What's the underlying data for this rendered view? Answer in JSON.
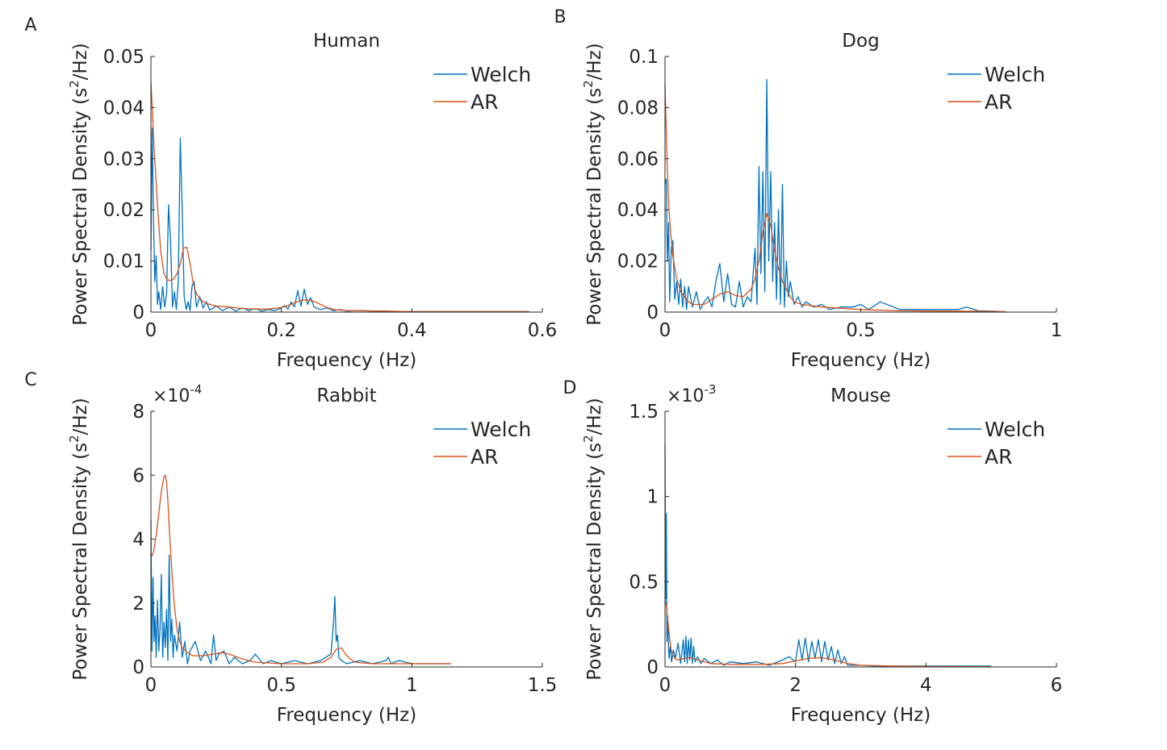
{
  "chart_data": [
    {
      "type": "line",
      "panel_label": "A",
      "title": "Human",
      "xlabel": "Frequency (Hz)",
      "ylabel": "Power Spectral Density (s²/Hz)",
      "ylabel_main": "Power Spectral Density (s",
      "ylabel_sup": "2",
      "ylabel_tail": "/Hz)",
      "xlim": [
        0,
        0.6
      ],
      "ylim": [
        0,
        0.05
      ],
      "xticks": [
        0,
        0.2,
        0.4,
        0.6
      ],
      "xtick_labels": [
        "0",
        "0.2",
        "0.4",
        "0.6"
      ],
      "yticks": [
        0,
        0.01,
        0.02,
        0.03,
        0.04,
        0.05
      ],
      "ytick_labels": [
        "0",
        "0.01",
        "0.02",
        "0.03",
        "0.04",
        "0.05"
      ],
      "exponent_base": "",
      "exponent_power": "",
      "legend_position": "top-right",
      "grid": false,
      "series": [
        {
          "name": "Welch",
          "color": "#0072BD",
          "x": [
            0,
            0.002,
            0.004,
            0.006,
            0.008,
            0.01,
            0.012,
            0.015,
            0.018,
            0.021,
            0.024,
            0.027,
            0.03,
            0.033,
            0.036,
            0.039,
            0.042,
            0.045,
            0.048,
            0.051,
            0.054,
            0.057,
            0.06,
            0.063,
            0.066,
            0.07,
            0.075,
            0.08,
            0.085,
            0.09,
            0.1,
            0.11,
            0.12,
            0.13,
            0.14,
            0.15,
            0.16,
            0.17,
            0.18,
            0.19,
            0.2,
            0.205,
            0.21,
            0.215,
            0.22,
            0.225,
            0.23,
            0.235,
            0.24,
            0.245,
            0.25,
            0.26,
            0.27,
            0.28,
            0.29,
            0.3,
            0.32,
            0.34,
            0.36,
            0.38,
            0.4,
            0.45,
            0.5,
            0.55,
            0.58
          ],
          "y": [
            0.012,
            0.036,
            0.018,
            0.006,
            0.011,
            0.0015,
            0.004,
            0.0005,
            0.005,
            0.001,
            0.0035,
            0.021,
            0.014,
            0.001,
            0.004,
            0.0005,
            0.006,
            0.034,
            0.02,
            0.003,
            0.0005,
            0.002,
            0.0003,
            0.005,
            0.006,
            0.001,
            0.003,
            0.0008,
            0.002,
            0.0004,
            0.0012,
            0.0003,
            0.001,
            0.0002,
            0.0008,
            0.0003,
            0.0007,
            0.0002,
            0.0005,
            0.0003,
            0.0008,
            0.0013,
            0.0006,
            0.002,
            0.001,
            0.0042,
            0.0012,
            0.0045,
            0.0015,
            0.0028,
            0.001,
            0.0005,
            0.0008,
            0.0003,
            0.0005,
            0.0002,
            0.0003,
            0.0002,
            0.0002,
            0.0001,
            0.0001,
            0.0001,
            0.0001,
            0.0001,
            0.0001
          ]
        },
        {
          "name": "AR",
          "color": "#D95319",
          "x": [
            0,
            0.002,
            0.005,
            0.01,
            0.015,
            0.02,
            0.025,
            0.03,
            0.035,
            0.04,
            0.045,
            0.05,
            0.055,
            0.06,
            0.065,
            0.07,
            0.08,
            0.09,
            0.1,
            0.12,
            0.14,
            0.16,
            0.18,
            0.2,
            0.21,
            0.22,
            0.23,
            0.24,
            0.25,
            0.26,
            0.27,
            0.28,
            0.3,
            0.35,
            0.4,
            0.5,
            0.58
          ],
          "y": [
            0.045,
            0.04,
            0.032,
            0.021,
            0.012,
            0.0075,
            0.0063,
            0.0062,
            0.0065,
            0.0075,
            0.0095,
            0.0125,
            0.0127,
            0.0095,
            0.0055,
            0.0035,
            0.002,
            0.0015,
            0.0012,
            0.001,
            0.0007,
            0.0006,
            0.0006,
            0.0009,
            0.0013,
            0.0018,
            0.0023,
            0.0024,
            0.0021,
            0.0015,
            0.0009,
            0.0005,
            0.0003,
            0.0002,
            0.0001,
            0.0001,
            0.0001
          ]
        }
      ]
    },
    {
      "type": "line",
      "panel_label": "B",
      "title": "Dog",
      "xlabel": "Frequency (Hz)",
      "ylabel": "Power Spectral Density (s²/Hz)",
      "ylabel_main": "Power Spectral Density (s",
      "ylabel_sup": "2",
      "ylabel_tail": "/Hz)",
      "xlim": [
        0,
        1
      ],
      "ylim": [
        0,
        0.1
      ],
      "xticks": [
        0,
        0.5,
        1
      ],
      "xtick_labels": [
        "0",
        "0.5",
        "1"
      ],
      "yticks": [
        0,
        0.02,
        0.04,
        0.06,
        0.08,
        0.1
      ],
      "ytick_labels": [
        "0",
        "0.02",
        "0.04",
        "0.06",
        "0.08",
        "0.1"
      ],
      "exponent_base": "",
      "exponent_power": "",
      "legend_position": "top-right",
      "grid": false,
      "series": [
        {
          "name": "Welch",
          "color": "#0072BD",
          "x": [
            0,
            0.003,
            0.006,
            0.009,
            0.012,
            0.016,
            0.02,
            0.025,
            0.03,
            0.035,
            0.04,
            0.045,
            0.05,
            0.055,
            0.06,
            0.07,
            0.08,
            0.09,
            0.1,
            0.11,
            0.12,
            0.13,
            0.14,
            0.15,
            0.16,
            0.17,
            0.18,
            0.19,
            0.2,
            0.21,
            0.22,
            0.23,
            0.235,
            0.24,
            0.245,
            0.25,
            0.255,
            0.26,
            0.265,
            0.27,
            0.275,
            0.28,
            0.285,
            0.29,
            0.295,
            0.3,
            0.305,
            0.31,
            0.315,
            0.32,
            0.33,
            0.34,
            0.35,
            0.36,
            0.38,
            0.4,
            0.42,
            0.45,
            0.48,
            0.5,
            0.52,
            0.55,
            0.6,
            0.65,
            0.7,
            0.75,
            0.77,
            0.8,
            0.85
          ],
          "y": [
            0.05,
            0.052,
            0.02,
            0.035,
            0.004,
            0.025,
            0.028,
            0.005,
            0.012,
            0.003,
            0.013,
            0.002,
            0.01,
            0.001,
            0.01,
            0.002,
            0.008,
            0.001,
            0.004,
            0.006,
            0.002,
            0.012,
            0.019,
            0.004,
            0.015,
            0.003,
            0.002,
            0.012,
            0.002,
            0.006,
            0.004,
            0.025,
            0.003,
            0.057,
            0.015,
            0.055,
            0.008,
            0.091,
            0.02,
            0.055,
            0.012,
            0.035,
            0.005,
            0.04,
            0.003,
            0.05,
            0.002,
            0.02,
            0.006,
            0.012,
            0.003,
            0.006,
            0.002,
            0.004,
            0.002,
            0.003,
            0.001,
            0.002,
            0.002,
            0.003,
            0.001,
            0.004,
            0.001,
            0.001,
            0.001,
            0.001,
            0.002,
            0.0005,
            0.0003
          ]
        },
        {
          "name": "AR",
          "color": "#D95319",
          "x": [
            0,
            0.005,
            0.01,
            0.015,
            0.02,
            0.03,
            0.04,
            0.05,
            0.06,
            0.07,
            0.08,
            0.1,
            0.12,
            0.14,
            0.16,
            0.18,
            0.2,
            0.22,
            0.23,
            0.24,
            0.25,
            0.26,
            0.27,
            0.28,
            0.29,
            0.3,
            0.31,
            0.32,
            0.33,
            0.35,
            0.4,
            0.5,
            0.6,
            0.7,
            0.8,
            0.87
          ],
          "y": [
            0.089,
            0.06,
            0.04,
            0.03,
            0.022,
            0.013,
            0.008,
            0.006,
            0.004,
            0.003,
            0.003,
            0.003,
            0.005,
            0.007,
            0.008,
            0.0065,
            0.006,
            0.009,
            0.013,
            0.02,
            0.031,
            0.0385,
            0.034,
            0.024,
            0.017,
            0.012,
            0.009,
            0.006,
            0.004,
            0.003,
            0.002,
            0.001,
            0.0005,
            0.0004,
            0.0003,
            0.0002
          ]
        }
      ]
    },
    {
      "type": "line",
      "panel_label": "C",
      "title": "Rabbit",
      "xlabel": "Frequency (Hz)",
      "ylabel": "Power Spectral Density (s²/Hz)",
      "ylabel_main": "Power Spectral Density (s",
      "ylabel_sup": "2",
      "ylabel_tail": "/Hz)",
      "xlim": [
        0,
        1.5
      ],
      "ylim": [
        0,
        8
      ],
      "xticks": [
        0,
        0.5,
        1,
        1.5
      ],
      "xtick_labels": [
        "0",
        "0.5",
        "1",
        "1.5"
      ],
      "yticks": [
        0,
        2,
        4,
        6,
        8
      ],
      "ytick_labels": [
        "0",
        "2",
        "4",
        "6",
        "8"
      ],
      "exponent_base": "×10",
      "exponent_power": "-4",
      "legend_position": "top-right",
      "grid": false,
      "series": [
        {
          "name": "Welch",
          "color": "#0072BD",
          "x": [
            0,
            0.004,
            0.008,
            0.012,
            0.016,
            0.02,
            0.025,
            0.03,
            0.035,
            0.04,
            0.045,
            0.05,
            0.055,
            0.06,
            0.065,
            0.07,
            0.075,
            0.08,
            0.085,
            0.09,
            0.1,
            0.11,
            0.12,
            0.13,
            0.14,
            0.15,
            0.17,
            0.19,
            0.21,
            0.23,
            0.24,
            0.25,
            0.26,
            0.28,
            0.3,
            0.32,
            0.35,
            0.38,
            0.4,
            0.43,
            0.46,
            0.5,
            0.55,
            0.6,
            0.65,
            0.69,
            0.7,
            0.705,
            0.71,
            0.715,
            0.72,
            0.73,
            0.75,
            0.8,
            0.85,
            0.9,
            0.91,
            0.92,
            0.95,
            1,
            1.05,
            1.1,
            1.15
          ],
          "y": [
            4.6,
            0.5,
            2.8,
            0.8,
            1.6,
            0.3,
            2.1,
            0.5,
            1.2,
            2.9,
            0.3,
            1.4,
            0.6,
            1.8,
            0.2,
            3.5,
            0.8,
            1.5,
            0.3,
            1.0,
            0.5,
            1.4,
            0.3,
            0.8,
            0.1,
            0.5,
            0.8,
            0.2,
            0.5,
            0.1,
            1.0,
            0.2,
            0.4,
            0.5,
            0.1,
            0.3,
            0.1,
            0.2,
            0.4,
            0.1,
            0.2,
            0.1,
            0.2,
            0.1,
            0.2,
            0.4,
            1.4,
            2.2,
            0.8,
            1.0,
            0.3,
            0.2,
            0.1,
            0.2,
            0.1,
            0.2,
            0.3,
            0.1,
            0.2,
            0.1,
            0.1,
            0.1,
            0.1
          ]
        },
        {
          "name": "AR",
          "color": "#D95319",
          "x": [
            0,
            0.01,
            0.02,
            0.03,
            0.04,
            0.05,
            0.055,
            0.06,
            0.065,
            0.07,
            0.08,
            0.09,
            0.1,
            0.11,
            0.12,
            0.14,
            0.16,
            0.2,
            0.24,
            0.27,
            0.3,
            0.35,
            0.4,
            0.5,
            0.6,
            0.66,
            0.69,
            0.71,
            0.73,
            0.75,
            0.78,
            0.85,
            1,
            1.15
          ],
          "y": [
            3.4,
            3.6,
            4.1,
            4.8,
            5.5,
            5.95,
            6.0,
            5.8,
            5.2,
            4.4,
            3.0,
            1.9,
            1.2,
            0.8,
            0.6,
            0.45,
            0.35,
            0.35,
            0.4,
            0.45,
            0.4,
            0.25,
            0.15,
            0.1,
            0.1,
            0.15,
            0.3,
            0.55,
            0.6,
            0.35,
            0.15,
            0.1,
            0.1,
            0.1
          ]
        }
      ]
    },
    {
      "type": "line",
      "panel_label": "D",
      "title": "Mouse",
      "xlabel": "Frequency (Hz)",
      "ylabel": "Power Spectral Density (s²/Hz)",
      "ylabel_main": "Power Spectral Density (s",
      "ylabel_sup": "2",
      "ylabel_tail": "/Hz)",
      "xlim": [
        0,
        6
      ],
      "ylim": [
        0,
        1.5
      ],
      "xticks": [
        0,
        2,
        4,
        6
      ],
      "xtick_labels": [
        "0",
        "2",
        "4",
        "6"
      ],
      "yticks": [
        0,
        0.5,
        1,
        1.5
      ],
      "ytick_labels": [
        "0",
        "0.5",
        "1",
        "1.5"
      ],
      "exponent_base": "×10",
      "exponent_power": "-3",
      "legend_position": "top-right",
      "grid": false,
      "series": [
        {
          "name": "Welch",
          "color": "#0072BD",
          "x": [
            0,
            0.01,
            0.02,
            0.03,
            0.04,
            0.06,
            0.08,
            0.1,
            0.13,
            0.16,
            0.2,
            0.24,
            0.28,
            0.3,
            0.32,
            0.34,
            0.36,
            0.38,
            0.4,
            0.42,
            0.44,
            0.46,
            0.5,
            0.55,
            0.6,
            0.7,
            0.8,
            0.9,
            1,
            1.2,
            1.4,
            1.6,
            1.8,
            1.9,
            2,
            2.05,
            2.1,
            2.15,
            2.2,
            2.25,
            2.3,
            2.35,
            2.4,
            2.45,
            2.5,
            2.55,
            2.6,
            2.65,
            2.7,
            2.75,
            2.8,
            3,
            3.2,
            3.5,
            4,
            4.5,
            5
          ],
          "y": [
            1.31,
            0.4,
            0.9,
            0.15,
            0.3,
            0.05,
            0.12,
            0.03,
            0.1,
            0.05,
            0.14,
            0.02,
            0.16,
            0.03,
            0.18,
            0.02,
            0.16,
            0.04,
            0.17,
            0.02,
            0.12,
            0.03,
            0.06,
            0.02,
            0.05,
            0.02,
            0.04,
            0.01,
            0.03,
            0.02,
            0.03,
            0.01,
            0.04,
            0.06,
            0.03,
            0.16,
            0.04,
            0.17,
            0.03,
            0.15,
            0.05,
            0.16,
            0.03,
            0.15,
            0.04,
            0.12,
            0.02,
            0.1,
            0.02,
            0.06,
            0.01,
            0.01,
            0.005,
            0.005,
            0.005,
            0.005,
            0.005
          ]
        },
        {
          "name": "AR",
          "color": "#D95319",
          "x": [
            0,
            0.02,
            0.05,
            0.08,
            0.1,
            0.15,
            0.2,
            0.3,
            0.4,
            0.5,
            0.7,
            1,
            1.5,
            1.8,
            2,
            2.2,
            2.4,
            2.6,
            2.8,
            3,
            3.5,
            4,
            4.5,
            5
          ],
          "y": [
            0.39,
            0.36,
            0.25,
            0.14,
            0.09,
            0.05,
            0.04,
            0.05,
            0.055,
            0.04,
            0.02,
            0.015,
            0.015,
            0.02,
            0.035,
            0.05,
            0.055,
            0.04,
            0.02,
            0.01,
            0.005,
            0.003,
            0.002,
            0.002
          ]
        }
      ]
    }
  ]
}
